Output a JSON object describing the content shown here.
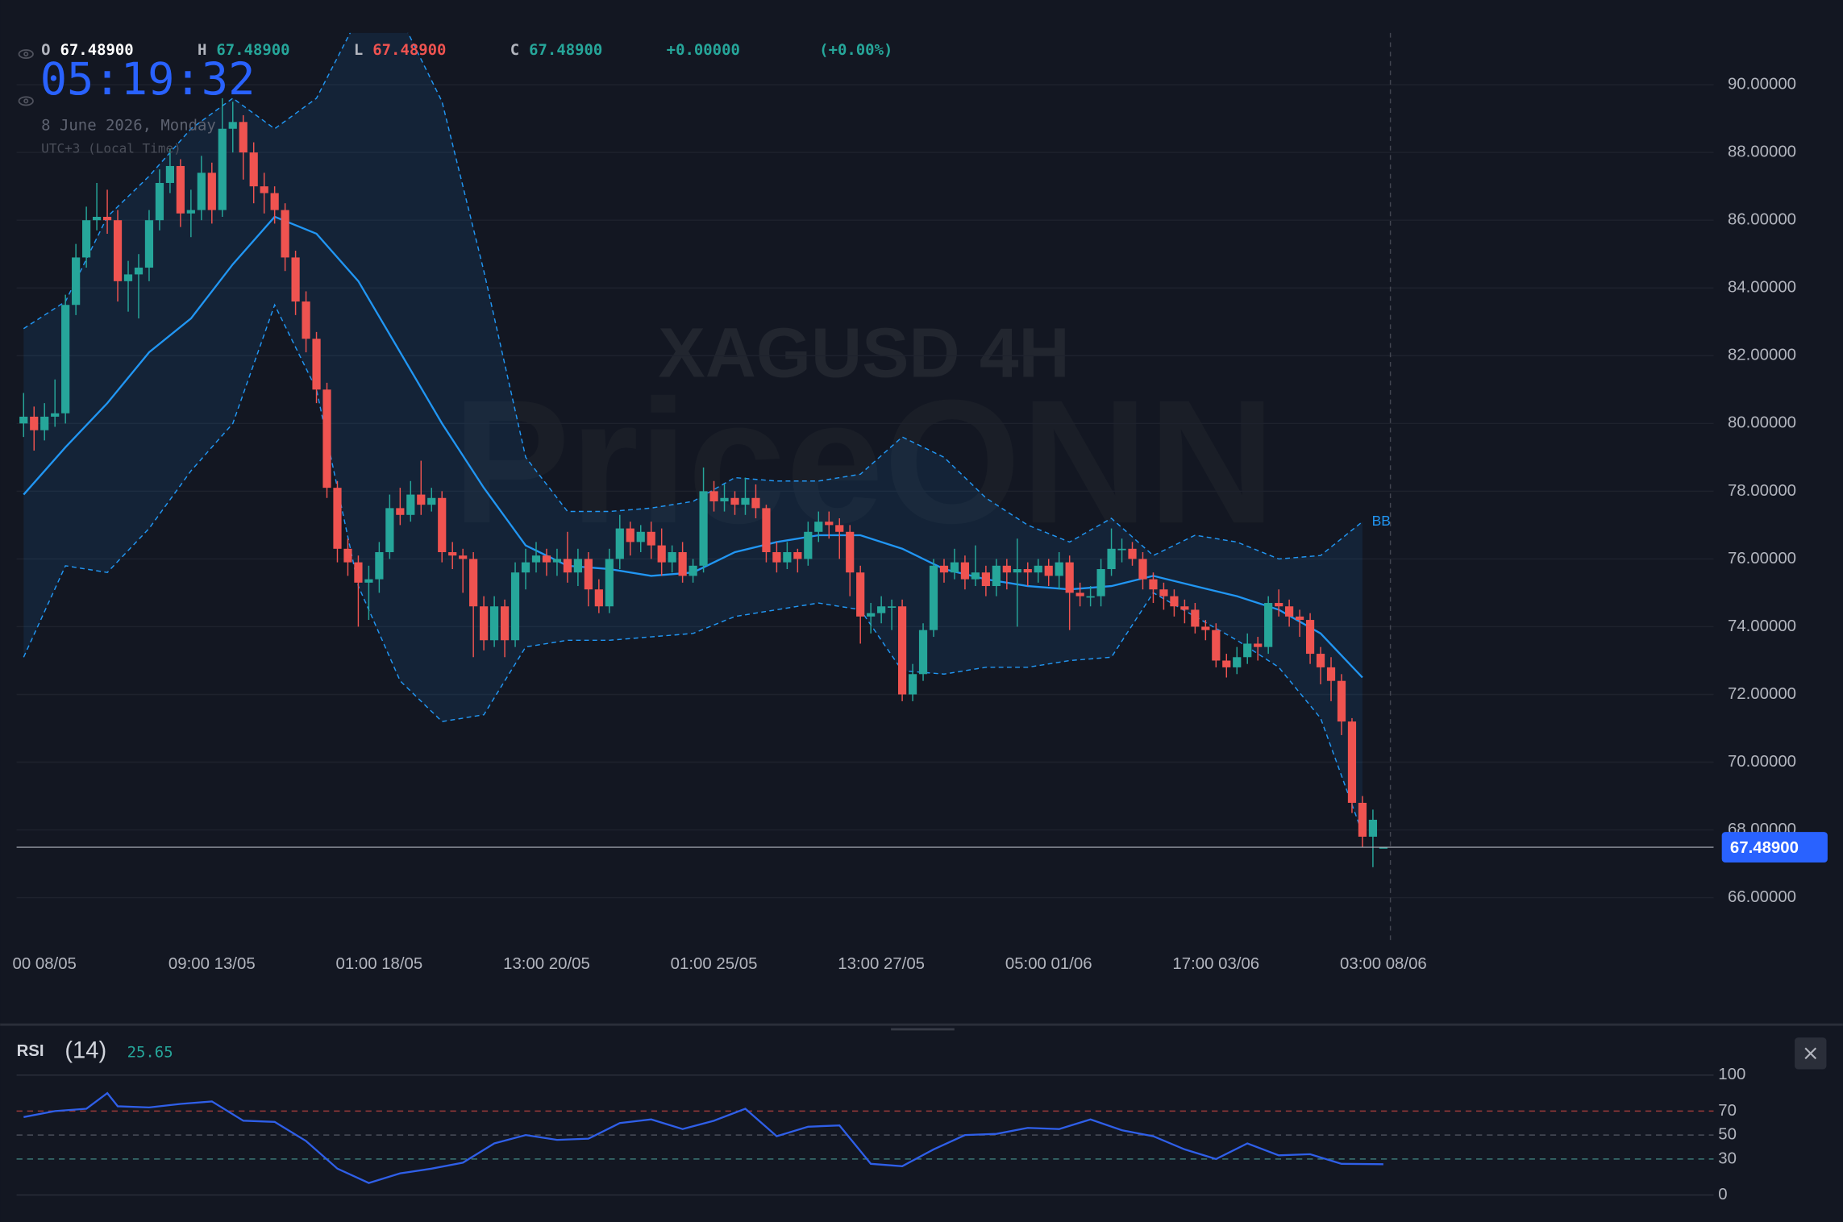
{
  "chart_data": [
    {
      "type": "candlestick",
      "title": "XAGUSD 4H",
      "watermark": "PriceONN",
      "header": {
        "o_label": "O",
        "o": "67.48900",
        "h_label": "H",
        "h": "67.48900",
        "l_label": "L",
        "l": "67.48900",
        "c_label": "C",
        "c": "67.48900",
        "change": "+0.00000",
        "change_pct": "(+0.00%)"
      },
      "clock": {
        "time": "05:19:32",
        "date": "8 June 2026, Monday",
        "timezone": "UTC+3 (Local Time)"
      },
      "up_color": "#26a69a",
      "down_color": "#ef5350",
      "x": [
        0,
        1,
        2,
        3,
        4,
        5,
        6,
        7,
        8,
        9,
        10,
        11,
        12,
        13,
        14,
        15,
        16,
        17,
        18,
        19,
        20,
        21,
        22,
        23,
        24,
        25,
        26,
        27,
        28,
        29,
        30,
        31,
        32,
        33,
        34,
        35,
        36,
        37,
        38,
        39,
        40,
        41,
        42,
        43,
        44,
        45,
        46,
        47,
        48,
        49,
        50,
        51,
        52,
        53,
        54,
        55,
        56,
        57,
        58,
        59,
        60,
        61,
        62,
        63,
        64,
        65,
        66,
        67,
        68,
        69,
        70,
        71,
        72,
        73,
        74,
        75,
        76,
        77,
        78,
        79,
        80,
        81,
        82,
        83,
        84,
        85,
        86,
        87,
        88,
        89,
        90,
        91,
        92,
        93,
        94,
        95,
        96,
        97,
        98,
        99,
        100,
        101,
        102,
        103,
        104,
        105,
        106,
        107,
        108,
        109,
        110,
        111,
        112,
        113,
        114,
        115,
        116,
        117,
        118,
        119,
        120,
        121,
        122,
        123,
        124,
        125,
        126,
        127,
        128,
        129,
        130
      ],
      "open": [
        80.0,
        80.2,
        79.8,
        80.2,
        80.3,
        83.5,
        84.9,
        86.0,
        86.1,
        86.0,
        84.2,
        84.4,
        84.6,
        86.0,
        87.1,
        87.6,
        86.2,
        86.3,
        87.4,
        86.3,
        88.7,
        88.9,
        88.0,
        87.0,
        86.8,
        86.3,
        84.9,
        83.6,
        82.5,
        81.0,
        78.1,
        76.3,
        75.9,
        75.3,
        75.4,
        76.2,
        77.5,
        77.3,
        77.9,
        77.6,
        77.8,
        76.2,
        76.1,
        76.0,
        74.6,
        73.6,
        74.6,
        73.6,
        75.6,
        75.9,
        76.1,
        75.9,
        76.0,
        75.6,
        76.0,
        75.1,
        74.6,
        76.0,
        76.9,
        76.5,
        76.8,
        76.4,
        75.9,
        76.2,
        75.5,
        75.8,
        78.0,
        77.7,
        77.8,
        77.6,
        77.8,
        77.5,
        76.2,
        75.9,
        76.2,
        76.0,
        76.8,
        77.1,
        77.0,
        76.8,
        75.6,
        74.3,
        74.4,
        74.6,
        74.6,
        72.0,
        72.6,
        73.9,
        75.8,
        75.6,
        75.9,
        75.4,
        75.6,
        75.2,
        75.8,
        75.6,
        75.7,
        75.6,
        75.8,
        75.5,
        75.9,
        75.0,
        74.9,
        74.9,
        75.7,
        76.3,
        76.3,
        76.0,
        75.4,
        75.1,
        74.9,
        74.6,
        74.5,
        74.0,
        73.9,
        73.0,
        72.8,
        73.1,
        73.5,
        73.4,
        74.7,
        74.6,
        74.3,
        74.2,
        73.2,
        72.8,
        72.4,
        71.2,
        68.8,
        67.8,
        67.489
      ],
      "high": [
        80.9,
        80.5,
        80.6,
        81.3,
        83.8,
        85.3,
        86.4,
        87.1,
        86.9,
        86.3,
        84.8,
        85.0,
        86.3,
        87.5,
        88.1,
        87.8,
        86.9,
        87.9,
        87.7,
        89.6,
        89.5,
        89.1,
        88.3,
        87.4,
        87.0,
        86.5,
        85.1,
        83.9,
        82.7,
        81.2,
        78.3,
        76.6,
        76.1,
        75.8,
        76.5,
        77.9,
        78.1,
        78.3,
        78.9,
        78.1,
        78.0,
        76.5,
        76.3,
        76.2,
        74.9,
        74.9,
        74.8,
        75.9,
        76.3,
        76.5,
        76.3,
        76.3,
        76.8,
        76.3,
        76.2,
        75.4,
        76.3,
        77.3,
        77.1,
        77.0,
        77.1,
        76.9,
        76.4,
        76.5,
        76.0,
        78.7,
        78.3,
        78.2,
        78.0,
        78.4,
        78.2,
        77.6,
        76.5,
        76.5,
        76.3,
        77.1,
        77.4,
        77.4,
        77.2,
        77.0,
        75.8,
        74.7,
        74.9,
        74.8,
        74.8,
        72.9,
        74.1,
        76.0,
        76.0,
        76.3,
        76.1,
        76.4,
        75.8,
        76.0,
        76.0,
        76.6,
        75.9,
        76.0,
        76.0,
        76.2,
        76.1,
        75.3,
        75.2,
        76.0,
        76.9,
        76.6,
        76.5,
        76.2,
        75.6,
        75.3,
        75.1,
        74.8,
        74.7,
        74.2,
        74.1,
        73.2,
        73.4,
        73.8,
        73.7,
        74.9,
        75.1,
        74.8,
        74.5,
        74.4,
        73.4,
        73.1,
        72.6,
        71.3,
        69.0,
        68.6,
        67.489
      ],
      "low": [
        79.6,
        79.2,
        79.5,
        79.9,
        80.0,
        83.2,
        84.6,
        85.7,
        85.6,
        83.6,
        83.3,
        83.1,
        84.2,
        85.7,
        86.8,
        85.8,
        85.5,
        86.0,
        85.9,
        86.1,
        88.0,
        87.2,
        86.5,
        86.2,
        85.9,
        84.5,
        83.2,
        82.1,
        80.6,
        77.8,
        75.9,
        75.5,
        74.0,
        74.2,
        75.0,
        76.0,
        77.0,
        77.1,
        77.3,
        77.4,
        75.9,
        75.7,
        75.0,
        73.1,
        73.3,
        73.4,
        73.1,
        73.4,
        75.1,
        75.6,
        75.5,
        75.5,
        75.3,
        75.2,
        74.6,
        74.4,
        74.4,
        75.7,
        76.1,
        76.2,
        76.0,
        75.5,
        75.6,
        75.3,
        75.3,
        75.6,
        77.4,
        77.4,
        77.3,
        77.3,
        77.2,
        75.9,
        75.6,
        75.7,
        75.6,
        75.8,
        76.5,
        76.6,
        76.0,
        74.9,
        73.5,
        73.8,
        74.1,
        73.9,
        71.8,
        71.8,
        72.4,
        73.7,
        75.3,
        75.4,
        75.1,
        75.2,
        74.9,
        74.9,
        75.1,
        74.0,
        75.2,
        75.3,
        75.2,
        75.1,
        73.9,
        74.6,
        74.6,
        74.6,
        75.5,
        75.9,
        75.8,
        75.1,
        74.7,
        74.5,
        74.3,
        74.1,
        73.8,
        73.6,
        72.8,
        72.5,
        72.6,
        72.9,
        73.0,
        73.2,
        74.3,
        74.0,
        73.7,
        72.9,
        72.3,
        71.8,
        70.8,
        68.5,
        67.5,
        66.9,
        67.489
      ],
      "close": [
        80.2,
        79.8,
        80.2,
        80.3,
        83.5,
        84.9,
        86.0,
        86.1,
        86.0,
        84.2,
        84.4,
        84.6,
        86.0,
        87.1,
        87.6,
        86.2,
        86.3,
        87.4,
        86.3,
        88.7,
        88.9,
        88.0,
        87.0,
        86.8,
        86.3,
        84.9,
        83.6,
        82.5,
        81.0,
        78.1,
        76.3,
        75.9,
        75.3,
        75.4,
        76.2,
        77.5,
        77.3,
        77.9,
        77.6,
        77.8,
        76.2,
        76.1,
        76.0,
        74.6,
        73.6,
        74.6,
        73.6,
        75.6,
        75.9,
        76.1,
        75.9,
        76.0,
        75.6,
        76.0,
        75.1,
        74.6,
        76.0,
        76.9,
        76.5,
        76.8,
        76.4,
        75.9,
        76.2,
        75.5,
        75.8,
        78.0,
        77.7,
        77.8,
        77.6,
        77.8,
        77.5,
        76.2,
        75.9,
        76.2,
        76.0,
        76.8,
        77.1,
        77.0,
        76.8,
        75.6,
        74.3,
        74.4,
        74.6,
        74.6,
        72.0,
        72.6,
        73.9,
        75.8,
        75.6,
        75.9,
        75.4,
        75.6,
        75.2,
        75.8,
        75.6,
        75.7,
        75.6,
        75.8,
        75.5,
        75.9,
        75.0,
        74.9,
        74.9,
        75.7,
        76.3,
        76.3,
        76.0,
        75.4,
        75.1,
        74.9,
        74.6,
        74.5,
        74.0,
        73.9,
        73.0,
        72.8,
        73.1,
        73.5,
        73.4,
        74.7,
        74.6,
        74.3,
        74.2,
        73.2,
        72.8,
        72.4,
        71.2,
        68.8,
        67.8,
        68.3,
        67.489
      ],
      "last_price_label": "67.48900",
      "bb": {
        "name": "BB",
        "color": "#2196f3",
        "x": [
          0,
          4,
          8,
          12,
          16,
          20,
          24,
          28,
          32,
          36,
          40,
          44,
          48,
          52,
          56,
          60,
          64,
          68,
          72,
          76,
          80,
          84,
          88,
          92,
          96,
          100,
          104,
          108,
          112,
          116,
          120,
          124,
          128
        ],
        "upper": [
          82.8,
          83.6,
          86.1,
          87.3,
          88.7,
          89.6,
          88.7,
          89.6,
          92.0,
          92.0,
          89.5,
          84.5,
          79.0,
          77.4,
          77.4,
          77.5,
          77.7,
          78.4,
          78.3,
          78.3,
          78.5,
          79.6,
          79.0,
          77.8,
          77.0,
          76.5,
          77.2,
          76.1,
          76.7,
          76.5,
          76.0,
          76.1,
          77.1
        ],
        "middle": [
          77.9,
          79.3,
          80.6,
          82.1,
          83.1,
          84.7,
          86.1,
          85.6,
          84.2,
          82.1,
          80.0,
          78.1,
          76.4,
          75.8,
          75.7,
          75.5,
          75.6,
          76.2,
          76.5,
          76.7,
          76.7,
          76.3,
          75.7,
          75.4,
          75.2,
          75.1,
          75.2,
          75.5,
          75.2,
          74.9,
          74.5,
          73.8,
          72.5
        ],
        "lower": [
          73.1,
          75.8,
          75.6,
          76.9,
          78.6,
          80.0,
          83.5,
          81.0,
          75.2,
          72.4,
          71.2,
          71.4,
          73.4,
          73.6,
          73.6,
          73.7,
          73.8,
          74.3,
          74.5,
          74.7,
          74.5,
          72.7,
          72.6,
          72.8,
          72.8,
          73.0,
          73.1,
          75.0,
          74.3,
          73.6,
          72.8,
          71.3,
          67.9
        ]
      },
      "xlim": [
        -0.67,
        161.57
      ],
      "ylim": [
        64.75,
        91.53
      ],
      "xticks": [
        {
          "value": 2,
          "label": "00 08/05"
        },
        {
          "value": 18,
          "label": "09:00 13/05"
        },
        {
          "value": 34,
          "label": "01:00 18/05"
        },
        {
          "value": 50,
          "label": "13:00 20/05"
        },
        {
          "value": 66,
          "label": "01:00 25/05"
        },
        {
          "value": 82,
          "label": "13:00 27/05"
        },
        {
          "value": 98,
          "label": "05:00 01/06"
        },
        {
          "value": 114,
          "label": "17:00 03/06"
        },
        {
          "value": 130,
          "label": "03:00 08/06"
        }
      ],
      "yticks": [
        {
          "value": 66,
          "label": "66.00000"
        },
        {
          "value": 68,
          "label": "68.00000"
        },
        {
          "value": 70,
          "label": "70.00000"
        },
        {
          "value": 72,
          "label": "72.00000"
        },
        {
          "value": 74,
          "label": "74.00000"
        },
        {
          "value": 76,
          "label": "76.00000"
        },
        {
          "value": 78,
          "label": "78.00000"
        },
        {
          "value": 80,
          "label": "80.00000"
        },
        {
          "value": 82,
          "label": "82.00000"
        },
        {
          "value": 84,
          "label": "84.00000"
        },
        {
          "value": 86,
          "label": "86.00000"
        },
        {
          "value": 88,
          "label": "88.00000"
        },
        {
          "value": 90,
          "label": "90.00000"
        }
      ],
      "grid": true
    },
    {
      "type": "line",
      "title": "RSI",
      "subtitle": "(14)",
      "value_label": "25.65",
      "color": "#2f5fe8",
      "x": [
        0,
        3,
        6,
        8,
        9,
        12,
        15,
        18,
        21,
        24,
        27,
        30,
        33,
        36,
        39,
        42,
        45,
        48,
        51,
        54,
        57,
        60,
        63,
        66,
        69,
        72,
        75,
        78,
        81,
        84,
        87,
        90,
        93,
        96,
        99,
        102,
        105,
        108,
        111,
        114,
        117,
        120,
        123,
        126,
        130
      ],
      "values": [
        65,
        70,
        72,
        85,
        74,
        73,
        76,
        78,
        62,
        61,
        45,
        22,
        10,
        18,
        22,
        27,
        43,
        50,
        46,
        47,
        60,
        63,
        55,
        62,
        72,
        49,
        57,
        58,
        26,
        24,
        38,
        50,
        51,
        56,
        55,
        63,
        54,
        49,
        38,
        30,
        43,
        33,
        34,
        26,
        25.65
      ],
      "xlim": [
        -0.67,
        161.57
      ],
      "ylim": [
        0,
        100
      ],
      "yticks": [
        0,
        30,
        50,
        70,
        100
      ],
      "grid": true
    }
  ]
}
